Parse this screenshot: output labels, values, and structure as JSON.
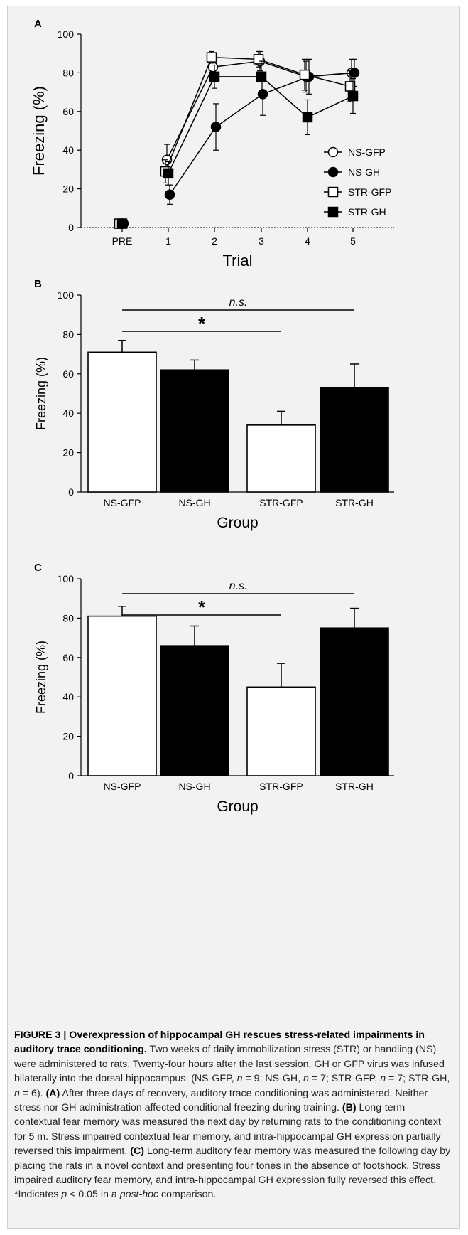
{
  "chart_data": [
    {
      "panel": "A",
      "type": "line",
      "xlabel": "Trial",
      "ylabel": "Freezing (%)",
      "ylim": [
        0,
        100
      ],
      "yticks": [
        0,
        20,
        40,
        60,
        80,
        100
      ],
      "categories": [
        "PRE",
        "1",
        "2",
        "3",
        "4",
        "5"
      ],
      "legend_position": "right",
      "series": [
        {
          "name": "NS-GFP",
          "marker": "circle-open",
          "values": [
            2,
            35,
            83,
            86,
            78,
            80
          ],
          "error": [
            0,
            8,
            4,
            5,
            8,
            7
          ],
          "offset": -2
        },
        {
          "name": "NS-GH",
          "marker": "circle-filled",
          "values": [
            2,
            17,
            52,
            69,
            78,
            80
          ],
          "error": [
            0,
            5,
            12,
            11,
            9,
            7
          ],
          "offset": 2
        },
        {
          "name": "STR-GFP",
          "marker": "square-open",
          "values": [
            2,
            29,
            88,
            87,
            79,
            73
          ],
          "error": [
            0,
            6,
            3,
            4,
            8,
            8
          ],
          "offset": -4
        },
        {
          "name": "STR-GH",
          "marker": "square-filled",
          "values": [
            2,
            28,
            78,
            78,
            57,
            68
          ],
          "error": [
            0,
            6,
            6,
            8,
            9,
            9
          ],
          "offset": 0
        }
      ]
    },
    {
      "panel": "B",
      "type": "bar",
      "xlabel": "Group",
      "ylabel": "Freezing (%)",
      "ylim": [
        0,
        100
      ],
      "yticks": [
        0,
        20,
        40,
        60,
        80,
        100
      ],
      "categories": [
        "NS-GFP",
        "NS-GH",
        "STR-GFP",
        "STR-GH"
      ],
      "values": [
        71,
        62,
        34,
        53
      ],
      "error": [
        6,
        5,
        7,
        12
      ],
      "bar_colors": [
        "#ffffff",
        "#000000",
        "#ffffff",
        "#000000"
      ],
      "annotations": [
        {
          "text": "n.s.",
          "from": 0,
          "to": 3,
          "italic": true
        },
        {
          "text": "*",
          "from": 0,
          "to": 2,
          "italic": false
        }
      ]
    },
    {
      "panel": "C",
      "type": "bar",
      "xlabel": "Group",
      "ylabel": "Freezing (%)",
      "ylim": [
        0,
        100
      ],
      "yticks": [
        0,
        20,
        40,
        60,
        80,
        100
      ],
      "categories": [
        "NS-GFP",
        "NS-GH",
        "STR-GFP",
        "STR-GH"
      ],
      "values": [
        81,
        66,
        45,
        75
      ],
      "error": [
        5,
        10,
        12,
        10
      ],
      "bar_colors": [
        "#ffffff",
        "#000000",
        "#ffffff",
        "#000000"
      ],
      "annotations": [
        {
          "text": "n.s.",
          "from": 0,
          "to": 3,
          "italic": true
        },
        {
          "text": "*",
          "from": 0,
          "to": 2,
          "italic": false
        }
      ]
    }
  ],
  "caption": {
    "label": "FIGURE 3 | Overexpression of hippocampal GH rescues stress-related impairments in auditory trace conditioning.",
    "t1": " Two weeks of daily immobilization stress (STR) or handling (NS) were administered to rats. Twenty-four hours after the last session, GH or GFP virus was infused bilaterally into the dorsal hippocampus. (NS-GFP, ",
    "n1": "n",
    "t2": " = 9; NS-GH, ",
    "n2": "n",
    "t3": " = 7; STR-GFP, ",
    "n3": "n",
    "t4": " = 7; STR-GH, ",
    "n4": "n",
    "t5": " = 6). ",
    "a_label": "(A)",
    "a_text": " After three days of recovery, auditory trace conditioning was administered. Neither stress nor GH administration affected conditional freezing during training. ",
    "b_label": "(B)",
    "b_text": " Long-term contextual fear memory was measured the next day by returning rats to the conditioning context for 5 m. Stress impaired contextual fear memory, and intra-hippocampal GH expression partially reversed this impairment. ",
    "c_label": "(C)",
    "c_text": " Long-term auditory fear memory was measured the following day by placing the rats in a novel context and presenting four tones in the absence of footshock. Stress impaired auditory fear memory, and intra-hippocampal GH expression fully reversed this effect. *Indicates ",
    "p": "p",
    "t6": " < 0.05 in a ",
    "posthoc": "post-hoc",
    "t7": " comparison."
  }
}
